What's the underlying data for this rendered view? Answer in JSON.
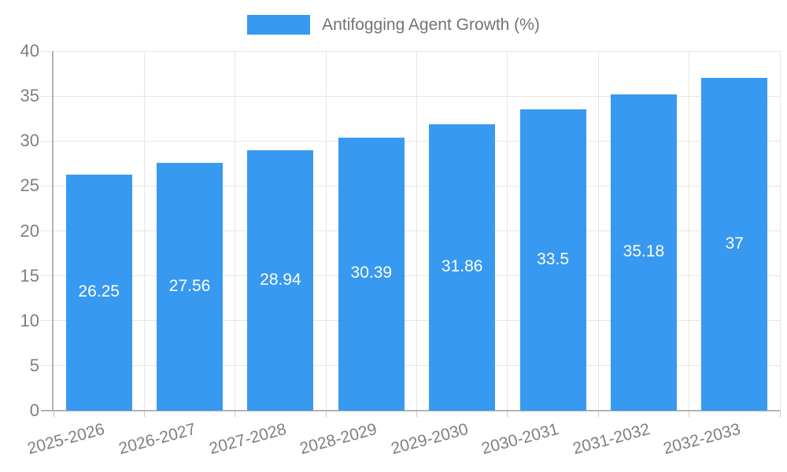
{
  "chart_data": {
    "type": "bar",
    "categories": [
      "2025-2026",
      "2026-2027",
      "2027-2028",
      "2028-2029",
      "2029-2030",
      "2030-2031",
      "2031-2032",
      "2032-2033"
    ],
    "series": [
      {
        "name": "Antifogging Agent Growth (%)",
        "values": [
          26.25,
          27.56,
          28.94,
          30.39,
          31.86,
          33.5,
          35.18,
          37
        ]
      }
    ],
    "title": "",
    "xlabel": "",
    "ylabel": "",
    "ylim": [
      0,
      40
    ],
    "yticks": [
      0,
      5,
      10,
      15,
      20,
      25,
      30,
      35,
      40
    ],
    "grid": true,
    "legend_position": "top",
    "x_label_rotation_deg": -15,
    "value_labels_inside_bars": true
  },
  "colors": {
    "bar": "#3899f0",
    "grid": "#e6e6e6",
    "tick": "#c9c9c9",
    "axis": "#b3b3b3",
    "tick_label": "#7f7f7f",
    "legend_label": "#737373",
    "bar_value_label": "#ffffff",
    "background": "#ffffff"
  }
}
